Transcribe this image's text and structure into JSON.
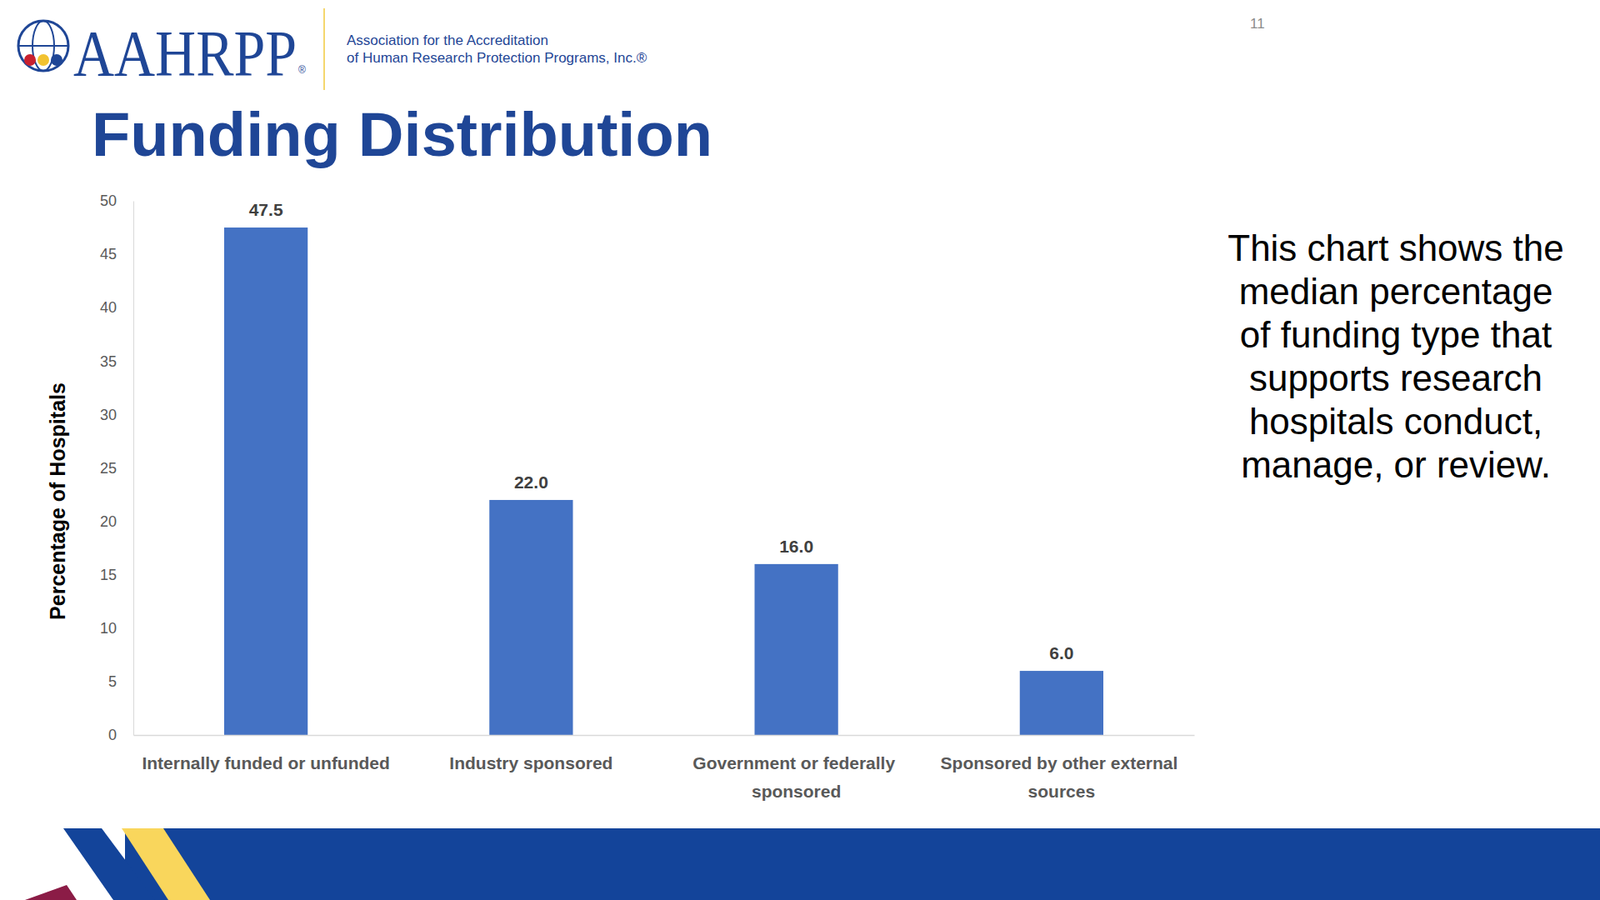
{
  "header": {
    "logo": "AAHRPP",
    "logo_mark": "®",
    "organization": [
      "Association for the Accreditation",
      "of Human Research Protection Programs, Inc.®"
    ],
    "page_number": 11
  },
  "chart_data": {
    "type": "bar",
    "title": "Funding Distribution",
    "y_label": "Percentage of Hospitals",
    "annotation": "This chart shows the median percentage of funding type that supports research hospitals conduct, manage, or review.",
    "categories": [
      "Internally funded or unfunded",
      "Industry sponsored",
      "Government or federally sponsored",
      "Sponsored by other external sources"
    ],
    "values": [
      47.5,
      22,
      16,
      6
    ],
    "value_labels": [
      "47.5",
      "22.0",
      "16.0",
      "6.0"
    ],
    "color": "#4472c4",
    "ylim": [
      0,
      50
    ],
    "yticks": [
      0,
      5,
      10,
      15,
      20,
      25,
      30,
      35,
      40,
      45,
      50
    ],
    "grid": false,
    "data_labels": true
  }
}
